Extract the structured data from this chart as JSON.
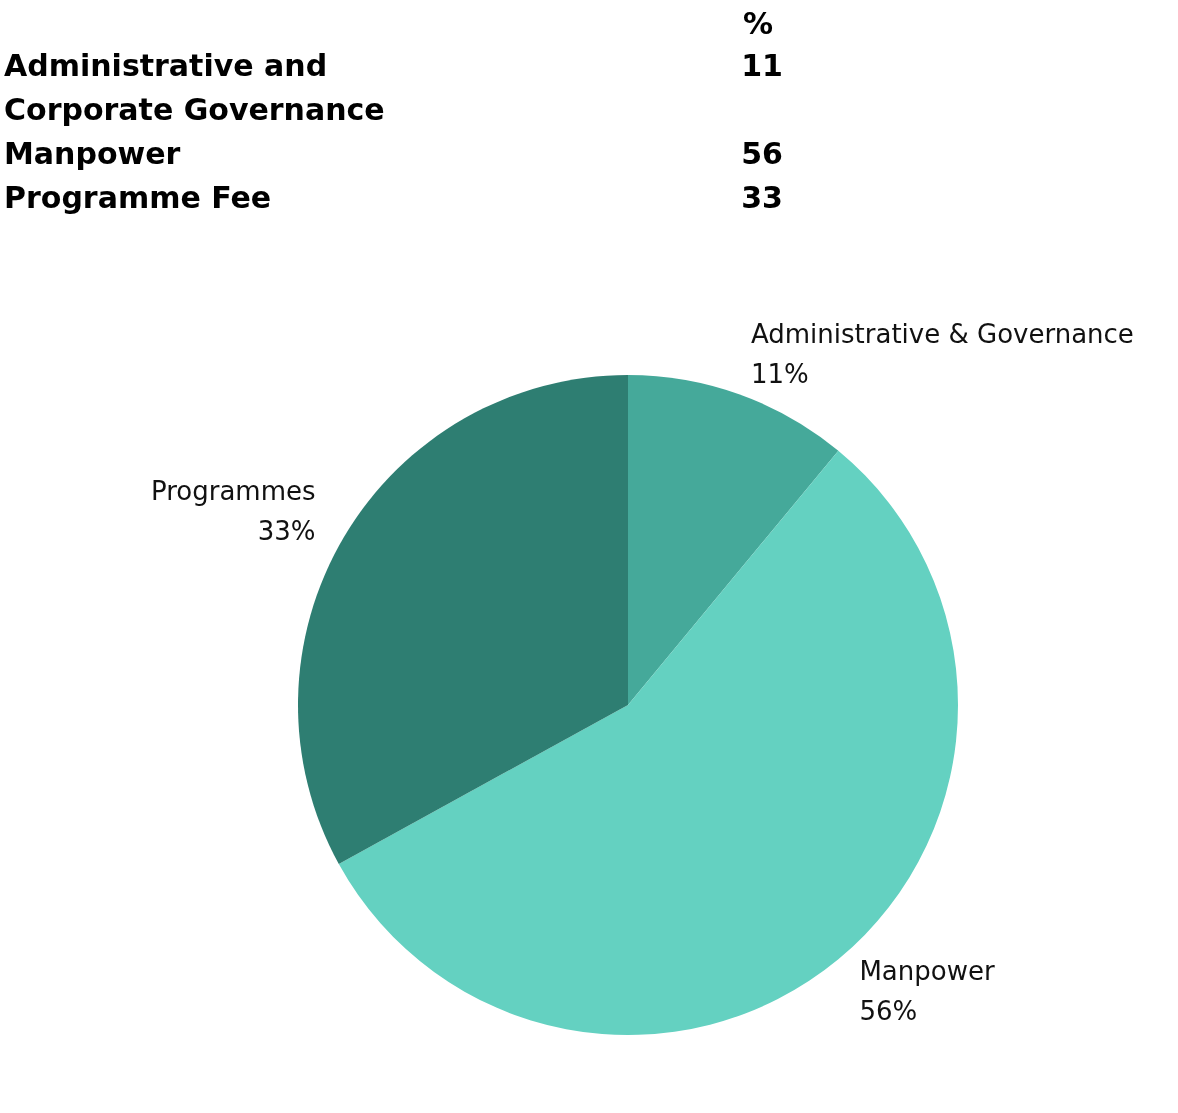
{
  "chart_data": [
    {
      "type": "other",
      "ylabel": "%",
      "categories": [
        "Administrative and Corporate Governance",
        "Manpower",
        "Programme Fee"
      ],
      "values": [
        11,
        56,
        33
      ],
      "data_labels": true
    },
    {
      "type": "pie",
      "categories": [
        "Administrative & Governance",
        "Manpower",
        "Programmes"
      ],
      "values": [
        11,
        56,
        33
      ],
      "colors": [
        "#45a99a",
        "#64d1c1",
        "#2e7e72"
      ],
      "value_labels": [
        "11%",
        "56%",
        "33%"
      ]
    }
  ]
}
